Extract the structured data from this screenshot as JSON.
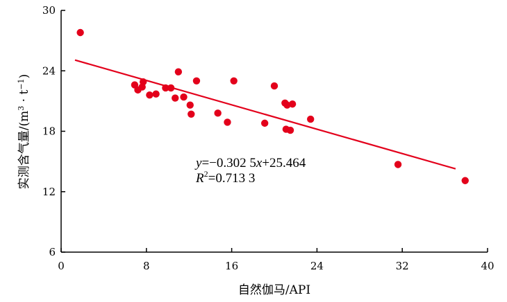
{
  "chart_data": {
    "type": "scatter",
    "title": "",
    "xlabel": "自然伽马/API",
    "ylabel_main": "实测含气量/(m",
    "ylabel_sup1": "3",
    "ylabel_mid": " · t",
    "ylabel_sup2": "−1",
    "ylabel_end": ")",
    "xlim": [
      0,
      40
    ],
    "ylim": [
      6,
      30
    ],
    "xticks": [
      0,
      8,
      16,
      24,
      32,
      40
    ],
    "yticks": [
      6,
      12,
      18,
      24,
      30
    ],
    "grid": false,
    "color": "#e3001b",
    "points": [
      {
        "x": 1.8,
        "y": 27.8
      },
      {
        "x": 6.9,
        "y": 22.6
      },
      {
        "x": 7.2,
        "y": 22.1
      },
      {
        "x": 7.6,
        "y": 22.4
      },
      {
        "x": 7.7,
        "y": 22.9
      },
      {
        "x": 8.3,
        "y": 21.6
      },
      {
        "x": 8.9,
        "y": 21.7
      },
      {
        "x": 9.8,
        "y": 22.3
      },
      {
        "x": 10.3,
        "y": 22.3
      },
      {
        "x": 10.7,
        "y": 21.3
      },
      {
        "x": 11.0,
        "y": 23.9
      },
      {
        "x": 11.5,
        "y": 21.4
      },
      {
        "x": 12.1,
        "y": 20.6
      },
      {
        "x": 12.2,
        "y": 19.7
      },
      {
        "x": 12.7,
        "y": 23.0
      },
      {
        "x": 14.7,
        "y": 19.8
      },
      {
        "x": 15.6,
        "y": 18.9
      },
      {
        "x": 16.2,
        "y": 23.0
      },
      {
        "x": 19.1,
        "y": 18.8
      },
      {
        "x": 20.0,
        "y": 22.5
      },
      {
        "x": 21.0,
        "y": 20.8
      },
      {
        "x": 21.2,
        "y": 20.6
      },
      {
        "x": 21.7,
        "y": 20.7
      },
      {
        "x": 21.1,
        "y": 18.2
      },
      {
        "x": 21.5,
        "y": 18.1
      },
      {
        "x": 23.4,
        "y": 19.2
      },
      {
        "x": 31.6,
        "y": 14.7
      },
      {
        "x": 37.9,
        "y": 13.1
      }
    ],
    "fit": {
      "slope": -0.3025,
      "intercept": 25.464,
      "x_start": 1.3,
      "x_end": 37.0
    },
    "equation": {
      "y_var": "y",
      "y_rest": "=−0.302 5",
      "x_var": "x",
      "x_rest": "+25.464",
      "r_var": "R",
      "r_sup": "2",
      "r_rest": "=0.713 3"
    }
  }
}
